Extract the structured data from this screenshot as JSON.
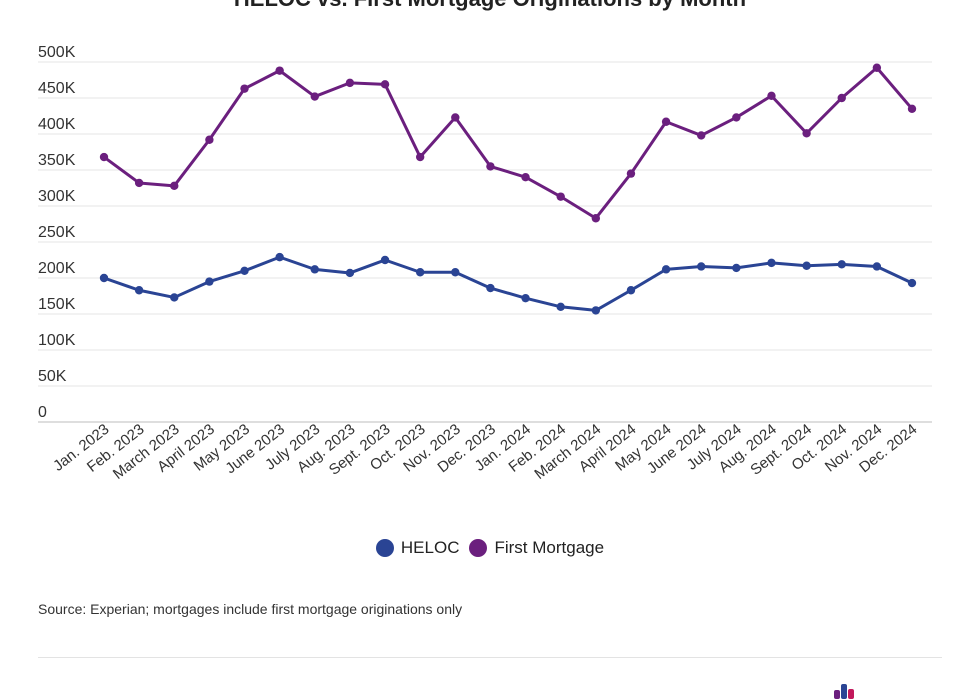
{
  "chart_data": {
    "type": "line",
    "title": "HELOC vs. First Mortgage Originations by Month",
    "categories": [
      "Jan. 2023",
      "Feb. 2023",
      "March 2023",
      "April 2023",
      "May 2023",
      "June 2023",
      "July 2023",
      "Aug. 2023",
      "Sept. 2023",
      "Oct. 2023",
      "Nov. 2023",
      "Dec. 2023",
      "Jan. 2024",
      "Feb. 2024",
      "March 2024",
      "April 2024",
      "May 2024",
      "June 2024",
      "July 2024",
      "Aug. 2024",
      "Sept. 2024",
      "Oct. 2024",
      "Nov. 2024",
      "Dec. 2024"
    ],
    "series": [
      {
        "name": "HELOC",
        "color": "#2a4494",
        "values": [
          200000,
          183000,
          173000,
          195000,
          210000,
          229000,
          212000,
          207000,
          225000,
          208000,
          208000,
          186000,
          172000,
          160000,
          155000,
          183000,
          212000,
          216000,
          214000,
          221000,
          217000,
          219000,
          216000,
          193000
        ]
      },
      {
        "name": "First Mortgage",
        "color": "#6b1f7e",
        "values": [
          368000,
          332000,
          328000,
          392000,
          463000,
          488000,
          452000,
          471000,
          469000,
          368000,
          423000,
          355000,
          340000,
          313000,
          283000,
          345000,
          417000,
          398000,
          423000,
          453000,
          401000,
          450000,
          492000,
          435000
        ]
      }
    ],
    "y_ticks": [
      0,
      50000,
      100000,
      150000,
      200000,
      250000,
      300000,
      350000,
      400000,
      450000,
      500000
    ],
    "y_tick_labels": [
      "0",
      "50K",
      "100K",
      "150K",
      "200K",
      "250K",
      "300K",
      "350K",
      "400K",
      "450K",
      "500K"
    ],
    "ylim": [
      0,
      500000
    ],
    "xlabel": "",
    "ylabel": "",
    "legend_position": "bottom-center",
    "grid": true
  },
  "legend": {
    "heloc": "HELOC",
    "first_mortgage": "First Mortgage"
  },
  "source": "Source: Experian; mortgages include first mortgage originations only",
  "colors": {
    "heloc": "#2a4494",
    "first_mortgage": "#6b1f7e",
    "grid": "#e6e6e6"
  }
}
